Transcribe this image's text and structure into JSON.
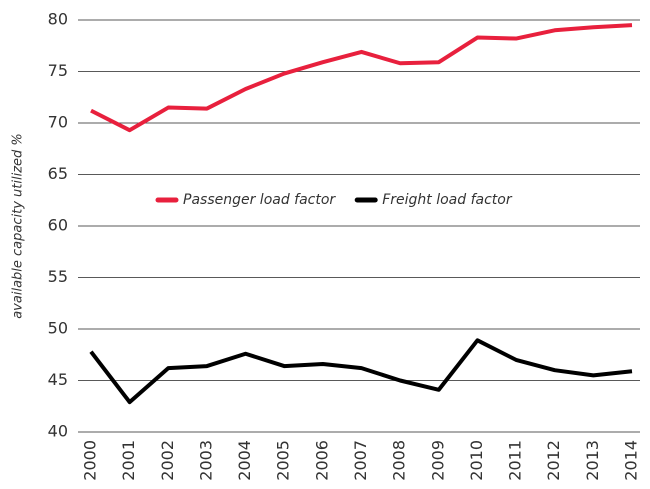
{
  "chart_data": {
    "type": "line",
    "y_label": "available capacity utilized %",
    "categories": [
      "2000",
      "2001",
      "2002",
      "2003",
      "2004",
      "2005",
      "2006",
      "2007",
      "2008",
      "2009",
      "2010",
      "2011",
      "2012",
      "2013",
      "2014"
    ],
    "series": [
      {
        "name": "Passenger load factor",
        "color": "#e8203d",
        "values": [
          71.2,
          69.3,
          71.5,
          71.4,
          73.3,
          74.8,
          75.9,
          76.9,
          75.8,
          75.9,
          78.3,
          78.2,
          79.0,
          79.3,
          79.5
        ]
      },
      {
        "name": "Freight load factor",
        "color": "#000000",
        "values": [
          47.8,
          42.9,
          46.2,
          46.4,
          47.6,
          46.4,
          46.6,
          46.2,
          45.0,
          44.1,
          48.9,
          47.0,
          46.0,
          45.5,
          45.9
        ]
      }
    ],
    "ylim": [
      40,
      80
    ],
    "yticks": [
      40,
      45,
      50,
      55,
      60,
      65,
      70,
      75,
      80
    ],
    "grid": true,
    "legend": "center"
  }
}
